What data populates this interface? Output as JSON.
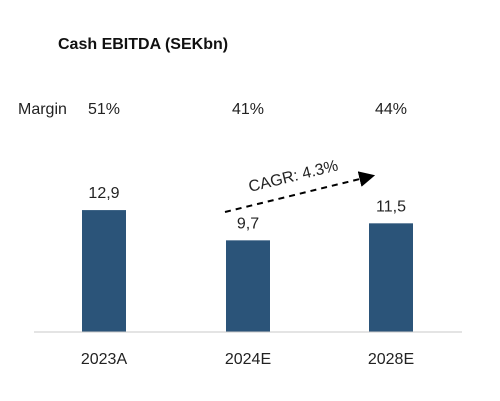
{
  "chart_data": {
    "type": "bar",
    "title": "Cash EBITDA (SEKbn)",
    "categories": [
      "2023A",
      "2024E",
      "2028E"
    ],
    "values": [
      12.9,
      9.7,
      11.5
    ],
    "value_labels": [
      "12,9",
      "9,7",
      "11,5"
    ],
    "margin_label": "Margin",
    "margins": [
      "51%",
      "41%",
      "44%"
    ],
    "annotation": "CAGR: 4.3%",
    "ylim": [
      0,
      20
    ],
    "grid": false,
    "legend": "none"
  },
  "colors": {
    "bar": "#2b5479",
    "text": "#222222",
    "axis": "#c8c8c8",
    "arrow": "#000000"
  }
}
